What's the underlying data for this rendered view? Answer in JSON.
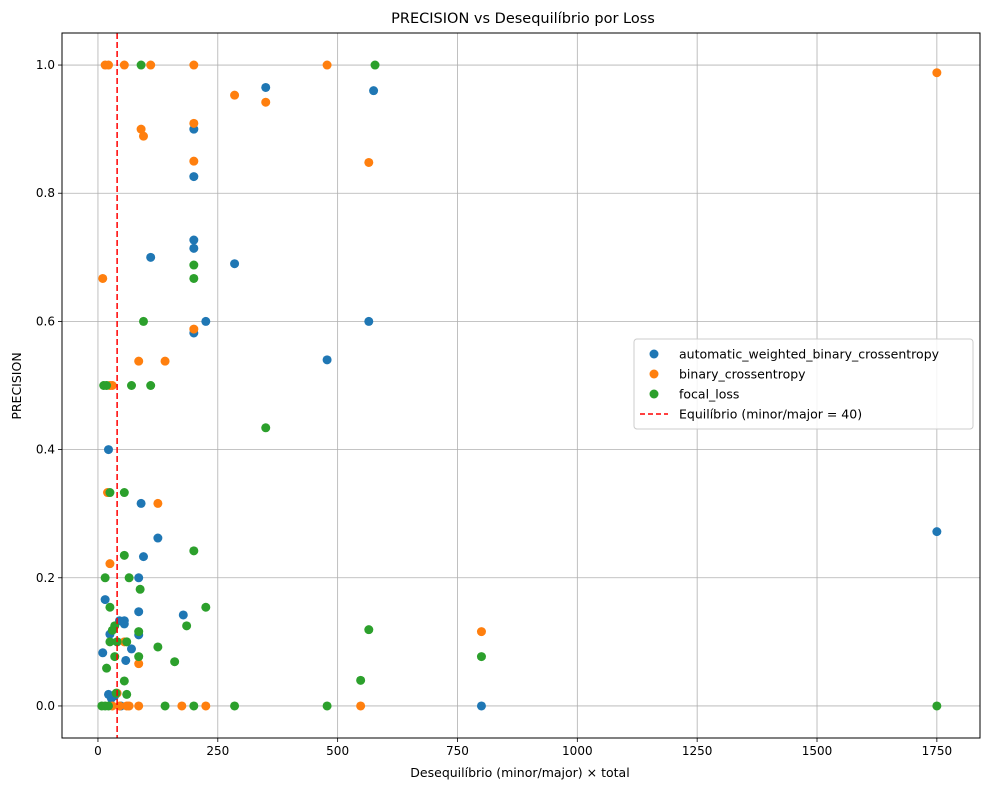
{
  "chart_data": {
    "type": "scatter",
    "title": "PRECISION vs Desequilíbrio por Loss",
    "xlabel": "Desequilíbrio (minor/major) × total",
    "ylabel": "PRECISION",
    "xlim": [
      -75,
      1840
    ],
    "ylim": [
      -0.05,
      1.05
    ],
    "xticks": [
      0,
      250,
      500,
      750,
      1000,
      1250,
      1500,
      1750
    ],
    "yticks": [
      0.0,
      0.2,
      0.4,
      0.6,
      0.8,
      1.0
    ],
    "ytick_labels": [
      "0.0",
      "0.2",
      "0.4",
      "0.6",
      "0.8",
      "1.0"
    ],
    "grid": true,
    "legend_position": "center-right",
    "series": [
      {
        "name": "automatic_weighted_binary_crossentropy",
        "color": "#1f77b4",
        "points": [
          [
            350,
            0.965
          ],
          [
            575,
            0.96
          ],
          [
            200,
            0.9
          ],
          [
            200,
            0.826
          ],
          [
            200,
            0.727
          ],
          [
            200,
            0.714
          ],
          [
            285,
            0.69
          ],
          [
            110,
            0.7
          ],
          [
            225,
            0.6
          ],
          [
            565,
            0.6
          ],
          [
            200,
            0.582
          ],
          [
            478,
            0.54
          ],
          [
            22,
            0.4
          ],
          [
            90,
            0.316
          ],
          [
            125,
            0.262
          ],
          [
            95,
            0.233
          ],
          [
            1750,
            0.272
          ],
          [
            85,
            0.2
          ],
          [
            15,
            0.166
          ],
          [
            85,
            0.147
          ],
          [
            178,
            0.142
          ],
          [
            55,
            0.133
          ],
          [
            55,
            0.128
          ],
          [
            45,
            0.133
          ],
          [
            40,
            0.1
          ],
          [
            25,
            0.112
          ],
          [
            85,
            0.111
          ],
          [
            70,
            0.089
          ],
          [
            10,
            0.083
          ],
          [
            58,
            0.071
          ],
          [
            22,
            0.018
          ],
          [
            35,
            0.016
          ],
          [
            28,
            0.012
          ],
          [
            800,
            0.0
          ],
          [
            48,
            0.0
          ]
        ]
      },
      {
        "name": "binary_crossentropy",
        "color": "#ff7f0e",
        "points": [
          [
            15,
            1.0
          ],
          [
            22,
            1.0
          ],
          [
            55,
            1.0
          ],
          [
            110,
            1.0
          ],
          [
            200,
            1.0
          ],
          [
            478,
            1.0
          ],
          [
            1750,
            0.988
          ],
          [
            285,
            0.953
          ],
          [
            350,
            0.942
          ],
          [
            200,
            0.909
          ],
          [
            90,
            0.9
          ],
          [
            95,
            0.889
          ],
          [
            200,
            0.85
          ],
          [
            565,
            0.848
          ],
          [
            10,
            0.667
          ],
          [
            200,
            0.588
          ],
          [
            85,
            0.538
          ],
          [
            140,
            0.538
          ],
          [
            25,
            0.5
          ],
          [
            30,
            0.5
          ],
          [
            20,
            0.333
          ],
          [
            125,
            0.316
          ],
          [
            25,
            0.222
          ],
          [
            55,
            0.1
          ],
          [
            800,
            0.116
          ],
          [
            85,
            0.066
          ],
          [
            40,
            0.02
          ],
          [
            60,
            0.0
          ],
          [
            65,
            0.0
          ],
          [
            85,
            0.0
          ],
          [
            175,
            0.0
          ],
          [
            225,
            0.0
          ],
          [
            548,
            0.0
          ],
          [
            30,
            0.0
          ],
          [
            45,
            0.0
          ]
        ]
      },
      {
        "name": "focal_loss",
        "color": "#2ca02c",
        "points": [
          [
            90,
            1.0
          ],
          [
            578,
            1.0
          ],
          [
            200,
            0.688
          ],
          [
            200,
            0.667
          ],
          [
            95,
            0.6
          ],
          [
            12,
            0.5
          ],
          [
            18,
            0.5
          ],
          [
            70,
            0.5
          ],
          [
            110,
            0.5
          ],
          [
            350,
            0.434
          ],
          [
            25,
            0.333
          ],
          [
            55,
            0.333
          ],
          [
            55,
            0.235
          ],
          [
            200,
            0.242
          ],
          [
            15,
            0.2
          ],
          [
            65,
            0.2
          ],
          [
            88,
            0.182
          ],
          [
            25,
            0.154
          ],
          [
            225,
            0.154
          ],
          [
            35,
            0.125
          ],
          [
            185,
            0.125
          ],
          [
            565,
            0.119
          ],
          [
            30,
            0.118
          ],
          [
            85,
            0.116
          ],
          [
            25,
            0.1
          ],
          [
            40,
            0.1
          ],
          [
            60,
            0.1
          ],
          [
            125,
            0.092
          ],
          [
            800,
            0.077
          ],
          [
            35,
            0.077
          ],
          [
            85,
            0.077
          ],
          [
            160,
            0.069
          ],
          [
            18,
            0.059
          ],
          [
            548,
            0.04
          ],
          [
            55,
            0.039
          ],
          [
            38,
            0.02
          ],
          [
            60,
            0.018
          ],
          [
            8,
            0.0
          ],
          [
            15,
            0.0
          ],
          [
            22,
            0.0
          ],
          [
            140,
            0.0
          ],
          [
            200,
            0.0
          ],
          [
            285,
            0.0
          ],
          [
            478,
            0.0
          ],
          [
            1750,
            0.0
          ]
        ]
      }
    ],
    "reference_line": {
      "name": "Equilíbrio (minor/major = 40)",
      "x": 40,
      "color": "#ff0000",
      "style": "dashed"
    }
  }
}
